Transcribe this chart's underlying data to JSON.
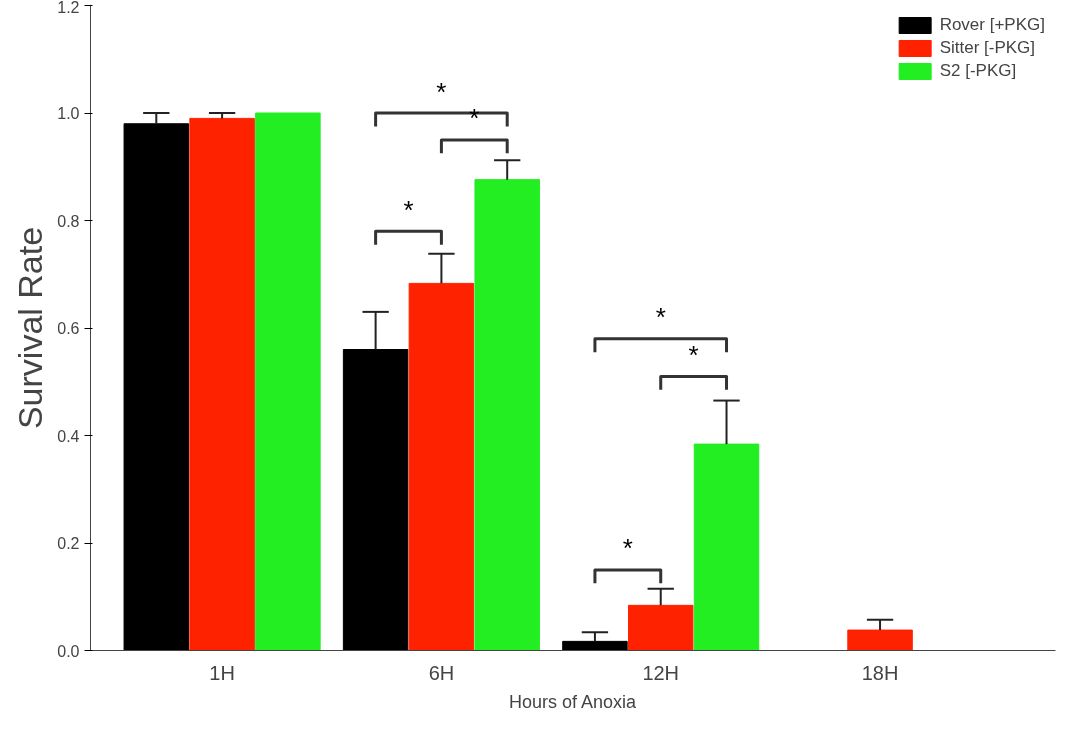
{
  "chart_data": {
    "type": "bar",
    "xlabel": "Hours of Anoxia",
    "ylabel": "Survival Rate",
    "categories": [
      "1H",
      "6H",
      "12H",
      "18H"
    ],
    "series": [
      {
        "name": "Rover [+PKG]",
        "color": "#000000",
        "values": [
          0.98,
          0.56,
          0.017,
          0
        ],
        "errors": [
          [
            0.98,
            1.0
          ],
          [
            0.56,
            0.63
          ],
          [
            0.017,
            0.034
          ],
          null
        ]
      },
      {
        "name": "Sitter [-PKG]",
        "color": "#ff2200",
        "values": [
          0.99,
          0.683,
          0.084,
          0.038
        ],
        "errors": [
          [
            0.99,
            1.0
          ],
          [
            0.683,
            0.738
          ],
          [
            0.084,
            0.115
          ],
          [
            0.038,
            0.057
          ]
        ]
      },
      {
        "name": "S2 [-PKG]",
        "color": "#22ee22",
        "values": [
          1.0,
          0.876,
          0.384,
          0
        ],
        "errors": [
          null,
          [
            0.876,
            0.912
          ],
          [
            0.384,
            0.465
          ],
          null
        ]
      }
    ],
    "ylim": [
      0,
      1.2
    ],
    "yticks": [
      {
        "value": 0,
        "label": "0.0"
      },
      {
        "value": 0.2,
        "label": "0.2"
      },
      {
        "value": 0.4,
        "label": "0.4"
      },
      {
        "value": 0.6,
        "label": "0.6"
      },
      {
        "value": 0.8,
        "label": "0.8"
      },
      {
        "value": 1.0,
        "label": "1.0"
      },
      {
        "value": 1.2,
        "label": "1.2"
      }
    ],
    "grid": false,
    "legend": "top right",
    "annotations": [
      "*",
      "*",
      "*",
      "*",
      "*",
      "*"
    ]
  }
}
